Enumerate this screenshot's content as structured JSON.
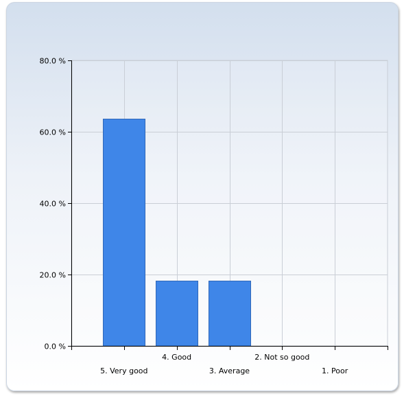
{
  "colors": {
    "bar": "#3f86e8",
    "bar_border": "#2f67b8",
    "grid": "#c9ced6",
    "axis": "#000000"
  },
  "chart_data": {
    "type": "bar",
    "categories": [
      "5. Very good",
      "4. Good",
      "3. Average",
      "2. Not so good",
      "1. Poor"
    ],
    "values": [
      63.6,
      18.2,
      18.2,
      0,
      0
    ],
    "ylim": [
      0,
      80
    ],
    "yticks": [
      0,
      20,
      40,
      60,
      80
    ],
    "ytick_labels": [
      "0.0 %",
      "20.0 %",
      "40.0 %",
      "60.0 %",
      "80.0 %"
    ],
    "grid": true,
    "legend": "none"
  }
}
